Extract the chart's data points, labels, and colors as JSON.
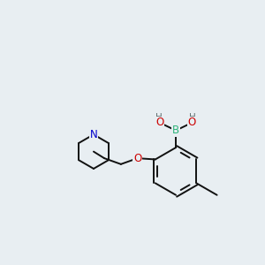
{
  "bg_color": "#e8eef2",
  "atom_colors": {
    "B": "#2db37a",
    "O": "#cc0000",
    "N": "#0000cc",
    "C": "#111111",
    "H": "#607070"
  },
  "bond_color": "#111111",
  "bond_width": 1.4,
  "font_size_atom": 8.5,
  "font_size_h": 7.5,
  "font_size_methyl": 7.0
}
